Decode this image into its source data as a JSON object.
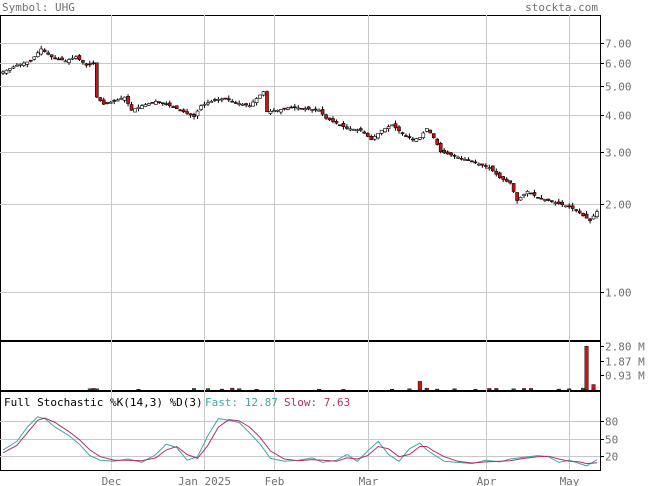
{
  "header": {
    "symbol_label": "Symbol: UHG",
    "site": "stockta.com"
  },
  "colors": {
    "grid": "#c8c8c8",
    "axis_text": "#707070",
    "up_candle": "#ffffff",
    "down_candle": "#cc1111",
    "volume_up": "#1d7a1d",
    "volume_down": "#cc1111",
    "fast_line": "#3fa7a0",
    "slow_line": "#b0306a"
  },
  "chart_data": [
    {
      "type": "candlestick",
      "panel": "price",
      "scale": "log",
      "ylim": [
        0.7,
        8.6
      ],
      "y_ticks": [
        "7.00",
        "6.00",
        "5.00",
        "4.00",
        "3.00",
        "2.00",
        "1.00"
      ],
      "x_ticks": [
        "Dec",
        "Jan 2025",
        "Feb",
        "Mar",
        "Apr",
        "May"
      ],
      "close_path": [
        [
          0,
          5.6
        ],
        [
          4,
          5.9
        ],
        [
          8,
          6.1
        ],
        [
          11,
          6.7
        ],
        [
          14,
          6.3
        ],
        [
          18,
          6.1
        ],
        [
          21,
          6.3
        ],
        [
          24,
          5.9
        ],
        [
          26,
          6.0
        ],
        [
          27,
          4.6
        ],
        [
          29,
          4.35
        ],
        [
          32,
          4.45
        ],
        [
          35,
          4.6
        ],
        [
          37,
          4.15
        ],
        [
          40,
          4.3
        ],
        [
          44,
          4.45
        ],
        [
          48,
          4.3
        ],
        [
          52,
          4.1
        ],
        [
          55,
          3.95
        ],
        [
          57,
          4.3
        ],
        [
          61,
          4.5
        ],
        [
          64,
          4.55
        ],
        [
          67,
          4.4
        ],
        [
          71,
          4.3
        ],
        [
          75,
          4.8
        ],
        [
          76,
          4.1
        ],
        [
          79,
          4.15
        ],
        [
          83,
          4.25
        ],
        [
          87,
          4.2
        ],
        [
          91,
          4.15
        ],
        [
          93,
          3.9
        ],
        [
          96,
          3.75
        ],
        [
          99,
          3.6
        ],
        [
          103,
          3.55
        ],
        [
          106,
          3.3
        ],
        [
          109,
          3.55
        ],
        [
          112,
          3.7
        ],
        [
          115,
          3.45
        ],
        [
          118,
          3.3
        ],
        [
          120,
          3.35
        ],
        [
          122,
          3.6
        ],
        [
          124,
          3.35
        ],
        [
          126,
          3.0
        ],
        [
          128,
          2.95
        ],
        [
          132,
          2.85
        ],
        [
          136,
          2.75
        ],
        [
          140,
          2.65
        ],
        [
          143,
          2.45
        ],
        [
          146,
          2.35
        ],
        [
          148,
          2.05
        ],
        [
          151,
          2.2
        ],
        [
          154,
          2.1
        ],
        [
          157,
          2.05
        ],
        [
          160,
          2.0
        ],
        [
          163,
          1.95
        ],
        [
          165,
          1.9
        ],
        [
          167,
          1.82
        ],
        [
          169,
          1.75
        ],
        [
          171,
          1.88
        ]
      ]
    },
    {
      "type": "bar",
      "panel": "volume",
      "y_ticks": [
        "2.80 M",
        "1.87 M",
        "0.93 M"
      ],
      "ylim_millions": [
        0,
        3.0
      ],
      "bars_millions": [
        [
          25,
          0.08
        ],
        [
          26,
          0.1
        ],
        [
          27,
          0.08
        ],
        [
          39,
          0.05
        ],
        [
          55,
          0.1
        ],
        [
          59,
          0.09
        ],
        [
          63,
          0.06
        ],
        [
          66,
          0.12
        ],
        [
          68,
          0.08
        ],
        [
          73,
          0.05
        ],
        [
          91,
          0.05
        ],
        [
          98,
          0.04
        ],
        [
          112,
          0.05
        ],
        [
          117,
          0.08
        ],
        [
          120,
          0.55
        ],
        [
          122,
          0.12
        ],
        [
          125,
          0.06
        ],
        [
          130,
          0.08
        ],
        [
          136,
          0.04
        ],
        [
          140,
          0.1
        ],
        [
          142,
          0.1
        ],
        [
          147,
          0.08
        ],
        [
          150,
          0.1
        ],
        [
          152,
          0.1
        ],
        [
          160,
          0.06
        ],
        [
          163,
          0.08
        ],
        [
          167,
          0.12
        ],
        [
          168,
          2.8
        ],
        [
          170,
          0.35
        ]
      ]
    },
    {
      "type": "line",
      "panel": "stochastic",
      "title": "Full Stochastic %K(14,3) %D(3)",
      "fast_label": "Fast: 12.87",
      "slow_label": "Slow: 7.63",
      "y_ticks": [
        "80",
        "50",
        "20"
      ],
      "ylim": [
        0,
        100
      ],
      "series": [
        {
          "name": "Fast",
          "points": [
            [
              0,
              30
            ],
            [
              4,
              45
            ],
            [
              7,
              70
            ],
            [
              10,
              88
            ],
            [
              12,
              85
            ],
            [
              15,
              70
            ],
            [
              19,
              55
            ],
            [
              22,
              40
            ],
            [
              25,
              20
            ],
            [
              28,
              12
            ],
            [
              32,
              10
            ],
            [
              36,
              14
            ],
            [
              40,
              8
            ],
            [
              44,
              22
            ],
            [
              47,
              40
            ],
            [
              50,
              34
            ],
            [
              53,
              12
            ],
            [
              56,
              18
            ],
            [
              59,
              55
            ],
            [
              62,
              85
            ],
            [
              65,
              82
            ],
            [
              68,
              78
            ],
            [
              71,
              60
            ],
            [
              74,
              40
            ],
            [
              77,
              15
            ],
            [
              81,
              10
            ],
            [
              85,
              12
            ],
            [
              89,
              16
            ],
            [
              92,
              8
            ],
            [
              96,
              12
            ],
            [
              99,
              22
            ],
            [
              102,
              10
            ],
            [
              105,
              28
            ],
            [
              108,
              45
            ],
            [
              111,
              22
            ],
            [
              114,
              10
            ],
            [
              117,
              32
            ],
            [
              120,
              42
            ],
            [
              122,
              30
            ],
            [
              124,
              22
            ],
            [
              127,
              10
            ],
            [
              131,
              8
            ],
            [
              135,
              6
            ],
            [
              139,
              12
            ],
            [
              143,
              9
            ],
            [
              146,
              14
            ],
            [
              150,
              17
            ],
            [
              154,
              20
            ],
            [
              157,
              18
            ],
            [
              160,
              8
            ],
            [
              163,
              12
            ],
            [
              166,
              6
            ],
            [
              168,
              2
            ],
            [
              171,
              12.87
            ]
          ]
        },
        {
          "name": "Slow",
          "points": [
            [
              0,
              25
            ],
            [
              4,
              38
            ],
            [
              7,
              60
            ],
            [
              10,
              82
            ],
            [
              12,
              86
            ],
            [
              15,
              78
            ],
            [
              19,
              62
            ],
            [
              22,
              48
            ],
            [
              25,
              30
            ],
            [
              28,
              18
            ],
            [
              32,
              12
            ],
            [
              36,
              12
            ],
            [
              40,
              11
            ],
            [
              44,
              16
            ],
            [
              47,
              30
            ],
            [
              50,
              36
            ],
            [
              53,
              22
            ],
            [
              56,
              15
            ],
            [
              59,
              38
            ],
            [
              62,
              70
            ],
            [
              65,
              83
            ],
            [
              68,
              81
            ],
            [
              71,
              70
            ],
            [
              74,
              52
            ],
            [
              77,
              28
            ],
            [
              81,
              14
            ],
            [
              85,
              11
            ],
            [
              89,
              13
            ],
            [
              92,
              12
            ],
            [
              96,
              10
            ],
            [
              99,
              16
            ],
            [
              102,
              14
            ],
            [
              105,
              20
            ],
            [
              108,
              36
            ],
            [
              111,
              32
            ],
            [
              114,
              18
            ],
            [
              117,
              22
            ],
            [
              120,
              36
            ],
            [
              122,
              36
            ],
            [
              124,
              28
            ],
            [
              127,
              18
            ],
            [
              131,
              10
            ],
            [
              135,
              7
            ],
            [
              139,
              9
            ],
            [
              143,
              10
            ],
            [
              146,
              11
            ],
            [
              150,
              15
            ],
            [
              154,
              18
            ],
            [
              157,
              19
            ],
            [
              160,
              14
            ],
            [
              163,
              10
            ],
            [
              166,
              9
            ],
            [
              168,
              6
            ],
            [
              171,
              7.63
            ]
          ]
        }
      ]
    }
  ]
}
